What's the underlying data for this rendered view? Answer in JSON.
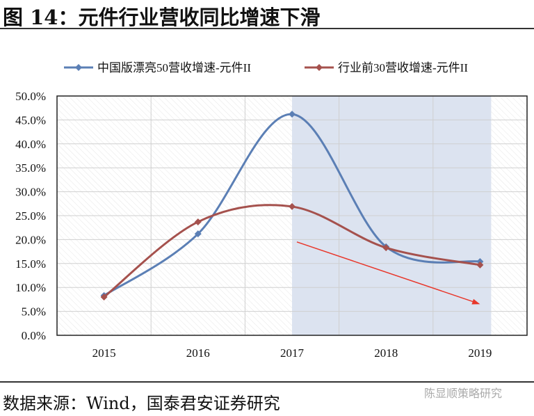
{
  "title": "图 14：元件行业营收同比增速下滑",
  "source": "数据来源：Wind，国泰君安证券研究",
  "watermark": "陈显顺策略研究",
  "chart_data": {
    "type": "line",
    "categories": [
      "2015",
      "2016",
      "2017",
      "2018",
      "2019"
    ],
    "series": [
      {
        "name": "中国版漂亮50营收增速-元件II",
        "color": "#5B7FB5",
        "values": [
          8.3,
          21.2,
          46.2,
          18.5,
          15.4
        ]
      },
      {
        "name": "行业前30营收增速-元件II",
        "color": "#A5514D",
        "values": [
          8.0,
          23.7,
          26.9,
          18.3,
          14.7
        ]
      }
    ],
    "ylim": [
      0,
      50
    ],
    "yticks": [
      "0.0%",
      "5.0%",
      "10.0%",
      "15.0%",
      "20.0%",
      "25.0%",
      "30.0%",
      "35.0%",
      "40.0%",
      "45.0%",
      "50.0%"
    ],
    "grid": true,
    "smooth": true,
    "legend": "top",
    "shaded_range": [
      "2017",
      "2019"
    ],
    "shade_color": "#DCE3F0",
    "arrow_color": "#E8372B",
    "arrow": {
      "from": [
        "2017",
        19.5
      ],
      "to": [
        "2019",
        6.5
      ]
    }
  }
}
